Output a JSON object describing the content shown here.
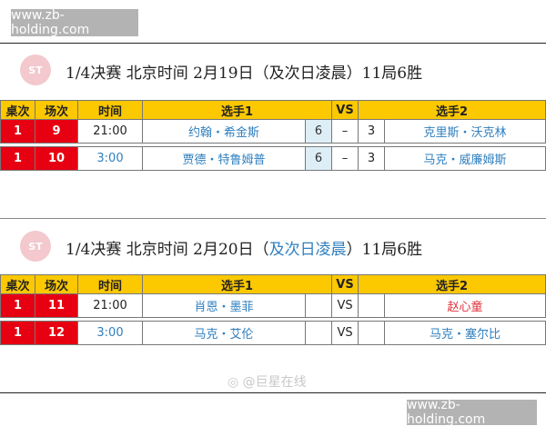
{
  "watermark": "www.zb-holding.com",
  "headers": [
    "桌次",
    "场次",
    "时间",
    "选手1",
    "VS",
    "选手2"
  ],
  "sections": [
    {
      "title_pre": "1/4决赛  北京时间  2月19日（",
      "title_hl": "及次日凌晨",
      "title_post": "）11局6胜",
      "rows": [
        {
          "table": "1",
          "match": "9",
          "time": "21:00",
          "p1": "约翰・希金斯",
          "s1": "6",
          "vs": "–",
          "s2": "3",
          "p2": "克里斯・沃克林"
        },
        {
          "table": "1",
          "match": "10",
          "time": "3:00",
          "p1": "贾德・特鲁姆普",
          "s1": "6",
          "vs": "–",
          "s2": "3",
          "p2": "马克・威廉姆斯"
        }
      ]
    },
    {
      "title_pre": "1/4决赛  北京时间  2月20日（",
      "title_hl": "及次日凌晨",
      "title_post": "）11局6胜",
      "rows": [
        {
          "table": "1",
          "match": "11",
          "time": "21:00",
          "p1": "肖恩・墨菲",
          "s1": "",
          "vs": "VS",
          "s2": "",
          "p2": "赵心童"
        },
        {
          "table": "1",
          "match": "12",
          "time": "3:00",
          "p1": "马克・艾伦",
          "s1": "",
          "vs": "VS",
          "s2": "",
          "p2": "马克・塞尔比"
        }
      ]
    }
  ],
  "weibo": "@巨星在线",
  "colors": {
    "header": "#fcc800",
    "red": "#e60012",
    "blue": "#2f7fbf"
  }
}
